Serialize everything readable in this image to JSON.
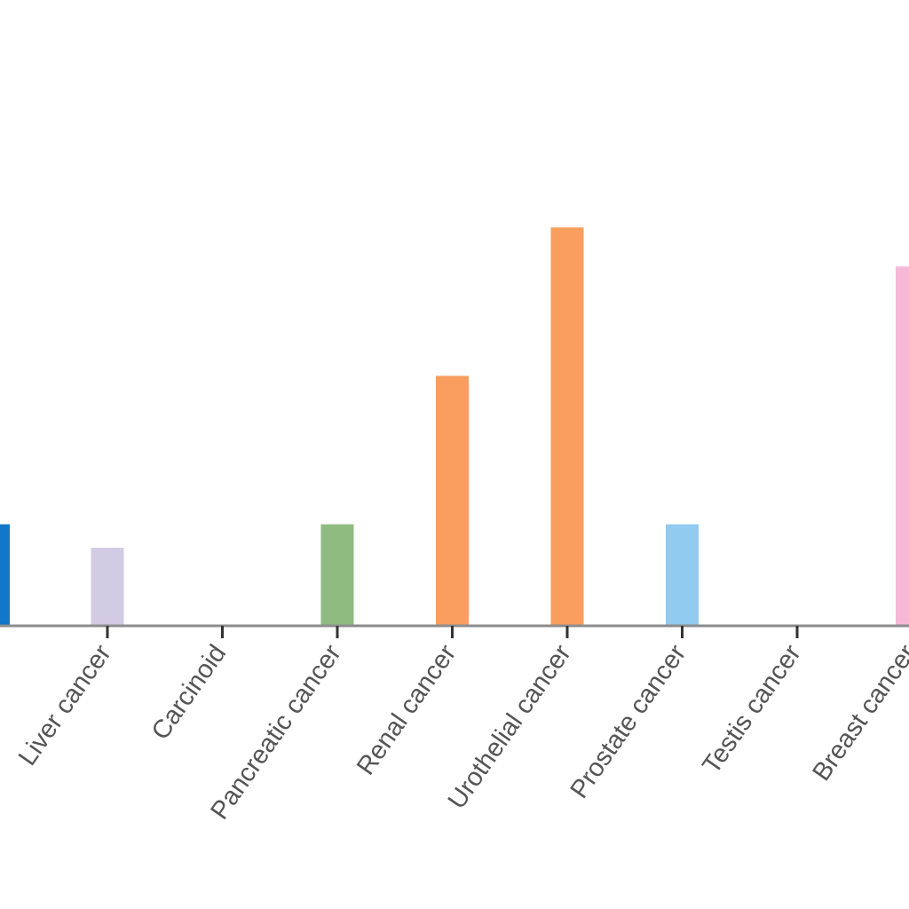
{
  "chart_data": {
    "type": "bar",
    "title": "",
    "xlabel": "",
    "ylabel": "",
    "categories": [
      "Liver cancer",
      "Carcinoid",
      "Pancreatic cancer",
      "Renal cancer",
      "Urothelial cancer",
      "Prostate cancer",
      "Testis cancer",
      "Breast cancer"
    ],
    "values": [
      1,
      0,
      1.3,
      3.2,
      5.1,
      1.3,
      0,
      4.6
    ],
    "colors": [
      "#d2cbe4",
      "#000000",
      "#8fbb80",
      "#f99e5e",
      "#f99e5e",
      "#92cbf0",
      "#000000",
      "#f7b8d8"
    ],
    "partial_left_bar": {
      "value": 1.3,
      "color": "#1277c6"
    },
    "ylim": [
      0,
      9
    ],
    "grid": false,
    "legend": "none"
  }
}
